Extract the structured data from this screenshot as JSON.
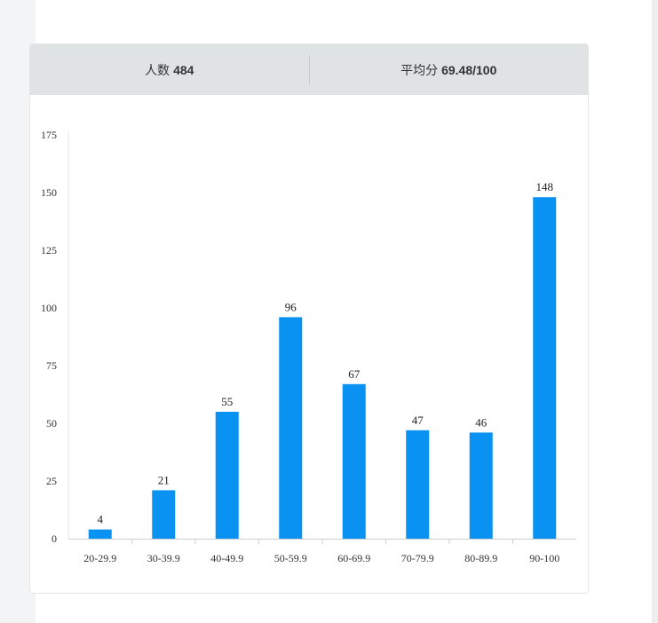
{
  "stats": {
    "count_label": "人数",
    "count_value": "484",
    "avg_label": "平均分",
    "avg_value": "69.48/100"
  },
  "chart_data": {
    "type": "bar",
    "categories": [
      "20-29.9",
      "30-39.9",
      "40-49.9",
      "50-59.9",
      "60-69.9",
      "70-79.9",
      "80-89.9",
      "90-100"
    ],
    "values": [
      4,
      21,
      55,
      96,
      67,
      47,
      46,
      148
    ],
    "yticks": [
      0,
      25,
      50,
      75,
      100,
      125,
      150,
      175
    ],
    "ylim": [
      0,
      175
    ],
    "bar_color": "#0a92f2",
    "grid": false,
    "data_labels": true
  }
}
